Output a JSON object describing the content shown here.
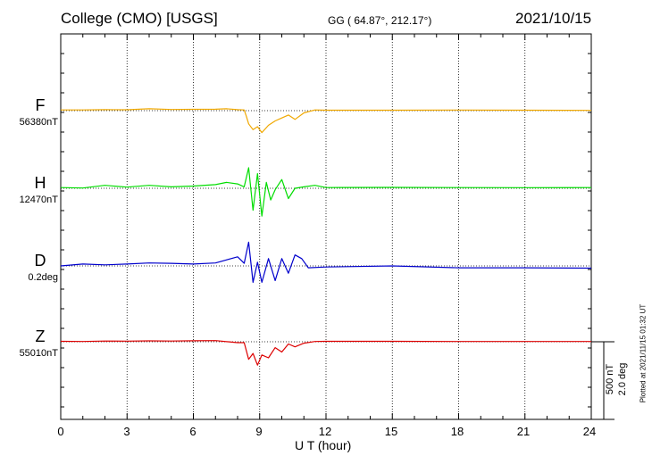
{
  "header": {
    "title": "College (CMO)  [USGS]",
    "coords": "GG ( 64.87°, 212.17°)",
    "date": "2021/10/15"
  },
  "colors": {
    "F": "#f0a800",
    "H": "#00dd00",
    "D": "#0000cc",
    "Z": "#dd0000"
  },
  "components": [
    {
      "label": "F",
      "baseline": "56380nT",
      "color": "#f0a800"
    },
    {
      "label": "H",
      "baseline": "12470nT",
      "color": "#00dd00"
    },
    {
      "label": "D",
      "baseline": "0.2deg",
      "color": "#0000cc"
    },
    {
      "label": "Z",
      "baseline": "55010nT",
      "color": "#dd0000"
    }
  ],
  "axis": {
    "xlabel": "U T (hour)",
    "ticks": [
      "0",
      "3",
      "6",
      "9",
      "12",
      "15",
      "18",
      "21",
      "24"
    ]
  },
  "scale": {
    "nt": "500 nT",
    "deg": "2.0 deg"
  },
  "plotted": "Plotted at 2021/11/15 01:32 UT",
  "chart_data": {
    "type": "line",
    "xlabel": "U T (hour)",
    "xlim": [
      0,
      24
    ],
    "grid": true,
    "series": [
      {
        "name": "F",
        "baseline": "56380nT",
        "x": [
          0,
          1,
          2,
          3,
          4,
          5,
          6,
          7,
          7.5,
          8,
          8.3,
          8.4,
          8.5,
          8.7,
          8.9,
          9.1,
          9.4,
          9.7,
          10,
          10.3,
          10.6,
          11,
          11.5,
          12,
          15,
          18,
          21,
          24
        ],
        "y": [
          5,
          5,
          7,
          6,
          13,
          8,
          9,
          10,
          13,
          7,
          5,
          -40,
          -90,
          -130,
          -110,
          -150,
          -100,
          -70,
          -50,
          -30,
          -60,
          -15,
          5,
          3,
          3,
          4,
          3,
          2
        ]
      },
      {
        "name": "H",
        "baseline": "12470nT",
        "x": [
          0,
          1,
          2,
          3,
          4,
          5,
          6,
          7,
          7.5,
          8,
          8.3,
          8.5,
          8.7,
          8.9,
          9.1,
          9.3,
          9.5,
          9.7,
          10,
          10.3,
          10.6,
          11,
          11.5,
          12,
          15,
          18,
          21,
          24
        ],
        "y": [
          5,
          2,
          20,
          8,
          20,
          10,
          15,
          25,
          40,
          30,
          10,
          140,
          -150,
          100,
          -190,
          40,
          -80,
          -10,
          60,
          -70,
          0,
          10,
          20,
          5,
          6,
          5,
          4,
          5
        ]
      },
      {
        "name": "D",
        "baseline": "0.2deg",
        "x": [
          0,
          1,
          2,
          3,
          4,
          5,
          6,
          7,
          8,
          8.3,
          8.5,
          8.7,
          8.9,
          9.1,
          9.4,
          9.7,
          10,
          10.3,
          10.6,
          10.9,
          11.2,
          12,
          15,
          18,
          21,
          24
        ],
        "y": [
          0,
          0.05,
          0.03,
          0.05,
          0.08,
          0.07,
          0.05,
          0.08,
          0.25,
          0.07,
          0.65,
          -0.45,
          0.1,
          -0.45,
          0.2,
          -0.4,
          0.2,
          -0.2,
          0.3,
          0.2,
          -0.05,
          -0.03,
          0.0,
          -0.05,
          -0.05,
          -0.06
        ]
      },
      {
        "name": "Z",
        "baseline": "55010nT",
        "x": [
          0,
          1,
          2,
          3,
          4,
          5,
          6,
          7,
          8,
          8.3,
          8.5,
          8.7,
          8.9,
          9.1,
          9.4,
          9.7,
          10,
          10.3,
          10.6,
          11,
          11.5,
          12,
          15,
          18,
          21,
          24
        ],
        "y": [
          3,
          2,
          5,
          4,
          6,
          5,
          7,
          8,
          -6,
          -6,
          -120,
          -80,
          -160,
          -90,
          -110,
          -40,
          -70,
          -15,
          -35,
          -10,
          2,
          3,
          3,
          2,
          2,
          2
        ]
      }
    ]
  }
}
